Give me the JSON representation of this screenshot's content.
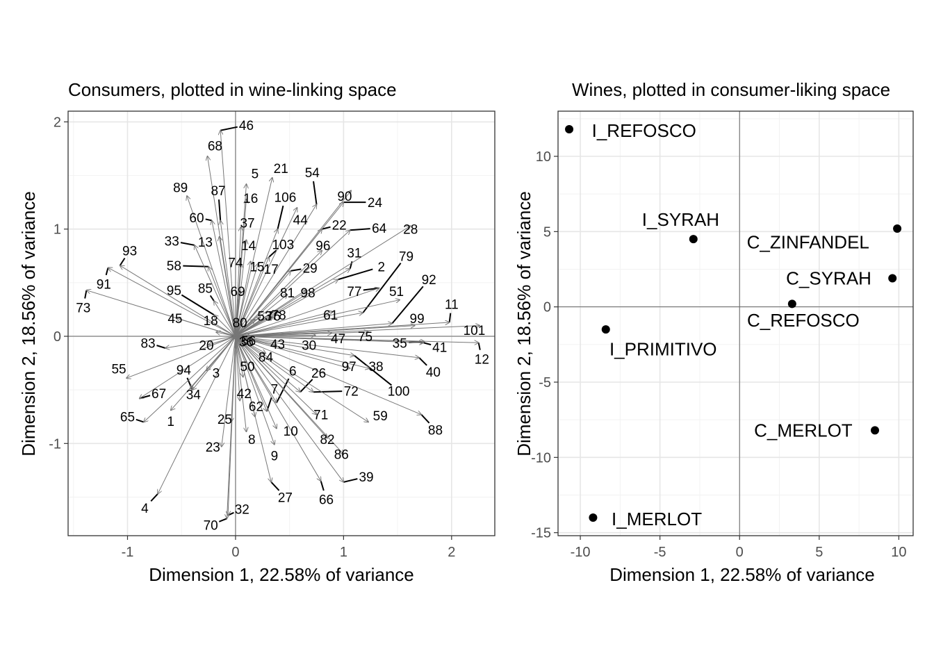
{
  "chart_data": [
    {
      "type": "biplot",
      "title": "Consumers, plotted in wine-linking space",
      "xlabel": "Dimension 1, 22.58% of variance",
      "ylabel": "Dimension 2, 18.56% of variance",
      "xlim": [
        -1.55,
        2.4
      ],
      "ylim": [
        -1.86,
        2.1
      ],
      "xticks": [
        -1,
        0,
        1,
        2
      ],
      "xtick_labels": [
        "-1",
        "0",
        "1",
        "2"
      ],
      "yticks": [
        -1,
        0,
        1,
        2
      ],
      "ytick_labels": [
        "-1",
        "0",
        "1",
        "2"
      ],
      "grid": true,
      "arrows_from_origin": true,
      "points": [
        {
          "id": "1",
          "x": -0.6,
          "y": -0.69,
          "lx": -0.6,
          "ly": -0.79
        },
        {
          "id": "2",
          "x": 0.95,
          "y": 0.53,
          "lx": 1.35,
          "ly": 0.65
        },
        {
          "id": "3",
          "x": -0.27,
          "y": -0.32,
          "lx": -0.18,
          "ly": -0.34
        },
        {
          "id": "4",
          "x": -0.72,
          "y": -1.47,
          "lx": -0.84,
          "ly": -1.6
        },
        {
          "id": "5",
          "x": 0.1,
          "y": 1.42,
          "lx": 0.18,
          "ly": 1.52
        },
        {
          "id": "6",
          "x": 0.38,
          "y": -0.62,
          "lx": 0.53,
          "ly": -0.32
        },
        {
          "id": "7",
          "x": 0.29,
          "y": -0.7,
          "lx": 0.36,
          "ly": -0.49
        },
        {
          "id": "8",
          "x": 0.1,
          "y": -0.89,
          "lx": 0.15,
          "ly": -0.96
        },
        {
          "id": "9",
          "x": 0.36,
          "y": -1.01,
          "lx": 0.36,
          "ly": -1.11
        },
        {
          "id": "10",
          "x": 0.38,
          "y": -0.86,
          "lx": 0.51,
          "ly": -0.88
        },
        {
          "id": "11",
          "x": 1.98,
          "y": 0.13,
          "lx": 2.0,
          "ly": 0.3
        },
        {
          "id": "12",
          "x": 2.25,
          "y": -0.06,
          "lx": 2.28,
          "ly": -0.21
        },
        {
          "id": "13",
          "x": -0.15,
          "y": 0.93,
          "lx": -0.28,
          "ly": 0.88
        },
        {
          "id": "14",
          "x": 0.1,
          "y": 0.9,
          "lx": 0.12,
          "ly": 0.85
        },
        {
          "id": "15",
          "x": 0.14,
          "y": 0.7,
          "lx": 0.2,
          "ly": 0.65
        },
        {
          "id": "16",
          "x": 0.1,
          "y": 1.28,
          "lx": 0.14,
          "ly": 1.29
        },
        {
          "id": "17",
          "x": 0.21,
          "y": 0.68,
          "lx": 0.33,
          "ly": 0.63
        },
        {
          "id": "18",
          "x": -0.18,
          "y": 0.04,
          "lx": -0.23,
          "ly": 0.15
        },
        {
          "id": "20",
          "x": -0.25,
          "y": -0.08,
          "lx": -0.27,
          "ly": -0.08
        },
        {
          "id": "21",
          "x": 0.34,
          "y": 1.48,
          "lx": 0.42,
          "ly": 1.57
        },
        {
          "id": "22",
          "x": 0.8,
          "y": 1.0,
          "lx": 0.96,
          "ly": 1.04
        },
        {
          "id": "23",
          "x": -0.13,
          "y": -1.03,
          "lx": -0.21,
          "ly": -1.03
        },
        {
          "id": "24",
          "x": 1.0,
          "y": 1.25,
          "lx": 1.29,
          "ly": 1.25
        },
        {
          "id": "25",
          "x": -0.04,
          "y": -0.8,
          "lx": -0.1,
          "ly": -0.77
        },
        {
          "id": "26",
          "x": 0.6,
          "y": -0.52,
          "lx": 0.77,
          "ly": -0.34
        },
        {
          "id": "27",
          "x": 0.33,
          "y": -1.36,
          "lx": 0.46,
          "ly": -1.5
        },
        {
          "id": "28",
          "x": 1.62,
          "y": 1.03,
          "lx": 1.62,
          "ly": 1.0
        },
        {
          "id": "29",
          "x": 0.51,
          "y": 0.61,
          "lx": 0.69,
          "ly": 0.64
        },
        {
          "id": "30",
          "x": 0.74,
          "y": 0.01,
          "lx": 0.68,
          "ly": -0.08
        },
        {
          "id": "31",
          "x": 1.06,
          "y": 0.63,
          "lx": 1.1,
          "ly": 0.78
        },
        {
          "id": "32",
          "x": -0.07,
          "y": -1.67,
          "lx": 0.06,
          "ly": -1.61
        },
        {
          "id": "33",
          "x": -0.38,
          "y": 0.85,
          "lx": -0.59,
          "ly": 0.89
        },
        {
          "id": "34",
          "x": -0.42,
          "y": -0.49,
          "lx": -0.39,
          "ly": -0.54
        },
        {
          "id": "35",
          "x": 1.75,
          "y": -0.05,
          "lx": 1.52,
          "ly": -0.06
        },
        {
          "id": "36",
          "x": 0.03,
          "y": -0.04,
          "lx": 0.1,
          "ly": -0.05
        },
        {
          "id": "37",
          "x": 0.05,
          "y": 1.02,
          "lx": 0.11,
          "ly": 1.06
        },
        {
          "id": "38",
          "x": 1.24,
          "y": -0.3,
          "lx": 1.3,
          "ly": -0.28
        },
        {
          "id": "39",
          "x": 1.0,
          "y": -1.36,
          "lx": 1.21,
          "ly": -1.31
        },
        {
          "id": "40",
          "x": 1.7,
          "y": -0.2,
          "lx": 1.83,
          "ly": -0.33
        },
        {
          "id": "41",
          "x": 1.74,
          "y": -0.06,
          "lx": 1.89,
          "ly": -0.1
        },
        {
          "id": "42",
          "x": 0.04,
          "y": -0.6,
          "lx": 0.08,
          "ly": -0.53
        },
        {
          "id": "43",
          "x": 0.38,
          "y": -0.08,
          "lx": 0.39,
          "ly": -0.07
        },
        {
          "id": "44",
          "x": 0.57,
          "y": 1.2,
          "lx": 0.6,
          "ly": 1.09
        },
        {
          "id": "45",
          "x": -0.55,
          "y": 0.17,
          "lx": -0.56,
          "ly": 0.17
        },
        {
          "id": "46",
          "x": -0.14,
          "y": 1.92,
          "lx": 0.1,
          "ly": 1.97
        },
        {
          "id": "47",
          "x": 0.89,
          "y": 0.03,
          "lx": 0.95,
          "ly": -0.02
        },
        {
          "id": "50",
          "x": 0.07,
          "y": -0.38,
          "lx": 0.11,
          "ly": -0.28
        },
        {
          "id": "51",
          "x": 1.52,
          "y": 0.34,
          "lx": 1.49,
          "ly": 0.42
        },
        {
          "id": "53",
          "x": 0.18,
          "y": 0.16,
          "lx": 0.27,
          "ly": 0.19
        },
        {
          "id": "54",
          "x": 0.75,
          "y": 1.23,
          "lx": 0.71,
          "ly": 1.53
        },
        {
          "id": "55",
          "x": -1.01,
          "y": -0.39,
          "lx": -1.08,
          "ly": -0.3
        },
        {
          "id": "56",
          "x": 0.13,
          "y": 0.01,
          "lx": 0.12,
          "ly": -0.04
        },
        {
          "id": "58",
          "x": -0.25,
          "y": 0.65,
          "lx": -0.57,
          "ly": 0.66
        },
        {
          "id": "59",
          "x": 1.23,
          "y": -0.8,
          "lx": 1.34,
          "ly": -0.74
        },
        {
          "id": "60",
          "x": -0.22,
          "y": 1.08,
          "lx": -0.36,
          "ly": 1.11
        },
        {
          "id": "61",
          "x": 0.9,
          "y": 0.23,
          "lx": 0.88,
          "ly": 0.2
        },
        {
          "id": "62",
          "x": 0.18,
          "y": -0.75,
          "lx": 0.19,
          "ly": -0.65
        },
        {
          "id": "64",
          "x": 1.06,
          "y": 0.99,
          "lx": 1.33,
          "ly": 1.01
        },
        {
          "id": "65",
          "x": -0.85,
          "y": -0.8,
          "lx": -1.0,
          "ly": -0.75
        },
        {
          "id": "66",
          "x": 0.79,
          "y": -1.35,
          "lx": 0.84,
          "ly": -1.52
        },
        {
          "id": "67",
          "x": -0.89,
          "y": -0.58,
          "lx": -0.71,
          "ly": -0.53
        },
        {
          "id": "68",
          "x": -0.26,
          "y": 1.68,
          "lx": -0.19,
          "ly": 1.78
        },
        {
          "id": "69",
          "x": 0.04,
          "y": 0.42,
          "lx": 0.02,
          "ly": 0.42
        },
        {
          "id": "70",
          "x": -0.08,
          "y": -1.7,
          "lx": -0.23,
          "ly": -1.76
        },
        {
          "id": "71",
          "x": 0.75,
          "y": -0.73,
          "lx": 0.79,
          "ly": -0.73
        },
        {
          "id": "72",
          "x": 0.72,
          "y": -0.52,
          "lx": 1.07,
          "ly": -0.51
        },
        {
          "id": "73",
          "x": -1.38,
          "y": 0.43,
          "lx": -1.41,
          "ly": 0.27
        },
        {
          "id": "74",
          "x": 0.05,
          "y": 0.68,
          "lx": 0.0,
          "ly": 0.69
        },
        {
          "id": "75",
          "x": 1.23,
          "y": 0.04,
          "lx": 1.2,
          "ly": 0.0
        },
        {
          "id": "76",
          "x": 0.23,
          "y": 0.18,
          "lx": 0.35,
          "ly": 0.19
        },
        {
          "id": "77",
          "x": 1.33,
          "y": 0.45,
          "lx": 1.1,
          "ly": 0.42
        },
        {
          "id": "78",
          "x": 0.35,
          "y": 0.18,
          "lx": 0.4,
          "ly": 0.2
        },
        {
          "id": "79",
          "x": 1.18,
          "y": 0.22,
          "lx": 1.58,
          "ly": 0.75
        },
        {
          "id": "80",
          "x": 0.06,
          "y": 0.12,
          "lx": 0.04,
          "ly": 0.13
        },
        {
          "id": "81",
          "x": 0.48,
          "y": 0.39,
          "lx": 0.48,
          "ly": 0.41
        },
        {
          "id": "82",
          "x": 0.85,
          "y": -0.95,
          "lx": 0.85,
          "ly": -0.96
        },
        {
          "id": "83",
          "x": -0.65,
          "y": -0.11,
          "lx": -0.81,
          "ly": -0.06
        },
        {
          "id": "84",
          "x": 0.28,
          "y": -0.16,
          "lx": 0.28,
          "ly": -0.19
        },
        {
          "id": "85",
          "x": -0.2,
          "y": 0.33,
          "lx": -0.28,
          "ly": 0.45
        },
        {
          "id": "86",
          "x": 1.0,
          "y": -1.1,
          "lx": 0.98,
          "ly": -1.1
        },
        {
          "id": "87",
          "x": -0.14,
          "y": 1.08,
          "lx": -0.16,
          "ly": 1.36
        },
        {
          "id": "88",
          "x": 1.72,
          "y": -0.73,
          "lx": 1.85,
          "ly": -0.87
        },
        {
          "id": "89",
          "x": -0.45,
          "y": 1.31,
          "lx": -0.51,
          "ly": 1.39
        },
        {
          "id": "90",
          "x": 1.07,
          "y": 1.36,
          "lx": 1.01,
          "ly": 1.31
        },
        {
          "id": "91",
          "x": -1.18,
          "y": 0.64,
          "lx": -1.22,
          "ly": 0.49
        },
        {
          "id": "92",
          "x": 1.45,
          "y": 0.12,
          "lx": 1.79,
          "ly": 0.53
        },
        {
          "id": "93",
          "x": -1.07,
          "y": 0.66,
          "lx": -0.98,
          "ly": 0.8
        },
        {
          "id": "94",
          "x": -0.4,
          "y": -0.5,
          "lx": -0.48,
          "ly": -0.31
        },
        {
          "id": "95",
          "x": -0.2,
          "y": 0.2,
          "lx": -0.57,
          "ly": 0.43
        },
        {
          "id": "96",
          "x": 0.8,
          "y": 0.8,
          "lx": 0.81,
          "ly": 0.85
        },
        {
          "id": "97",
          "x": 1.06,
          "y": -0.3,
          "lx": 1.05,
          "ly": -0.28
        },
        {
          "id": "98",
          "x": 0.65,
          "y": 0.43,
          "lx": 0.67,
          "ly": 0.41
        },
        {
          "id": "99",
          "x": 1.66,
          "y": 0.1,
          "lx": 1.68,
          "ly": 0.17
        },
        {
          "id": "100",
          "x": 1.1,
          "y": -0.18,
          "lx": 1.51,
          "ly": -0.51
        },
        {
          "id": "101",
          "x": 2.26,
          "y": 0.1,
          "lx": 2.21,
          "ly": 0.06
        },
        {
          "id": "103",
          "x": 0.31,
          "y": 0.74,
          "lx": 0.44,
          "ly": 0.86
        },
        {
          "id": "106",
          "x": 0.39,
          "y": 1.0,
          "lx": 0.46,
          "ly": 1.3
        }
      ]
    },
    {
      "type": "scatter",
      "title": "Wines, plotted in consumer-liking space",
      "xlabel": "Dimension 1, 22.58% of variance",
      "ylabel": "Dimension 2, 18.56% of variance",
      "xlim": [
        -11.4,
        10.9
      ],
      "ylim": [
        -15.2,
        13.0
      ],
      "xticks": [
        -10,
        -5,
        0,
        5,
        10
      ],
      "xtick_labels": [
        "-10",
        "-5",
        "0",
        "5",
        "10"
      ],
      "yticks": [
        -15,
        -10,
        -5,
        0,
        5,
        10
      ],
      "ytick_labels": [
        "-15",
        "-10",
        "-5",
        "0",
        "5",
        "10"
      ],
      "grid": true,
      "points": [
        {
          "label": "I_REFOSCO",
          "x": -10.7,
          "y": 11.8,
          "lx": -6.0,
          "ly": 11.7
        },
        {
          "label": "I_SYRAH",
          "x": -2.9,
          "y": 4.5,
          "lx": -3.7,
          "ly": 5.8
        },
        {
          "label": "C_ZINFANDEL",
          "x": 9.9,
          "y": 5.2,
          "lx": 4.3,
          "ly": 4.3
        },
        {
          "label": "C_SYRAH",
          "x": 9.6,
          "y": 1.9,
          "lx": 5.6,
          "ly": 1.9
        },
        {
          "label": "C_REFOSCO",
          "x": 3.3,
          "y": 0.2,
          "lx": 4.0,
          "ly": -0.9
        },
        {
          "label": "I_PRIMITIVO",
          "x": -8.4,
          "y": -1.5,
          "lx": -4.8,
          "ly": -2.8
        },
        {
          "label": "C_MERLOT",
          "x": 8.5,
          "y": -8.2,
          "lx": 4.0,
          "ly": -8.2
        },
        {
          "label": "I_MERLOT",
          "x": -9.2,
          "y": -14.0,
          "lx": -5.2,
          "ly": -14.1
        }
      ]
    }
  ]
}
